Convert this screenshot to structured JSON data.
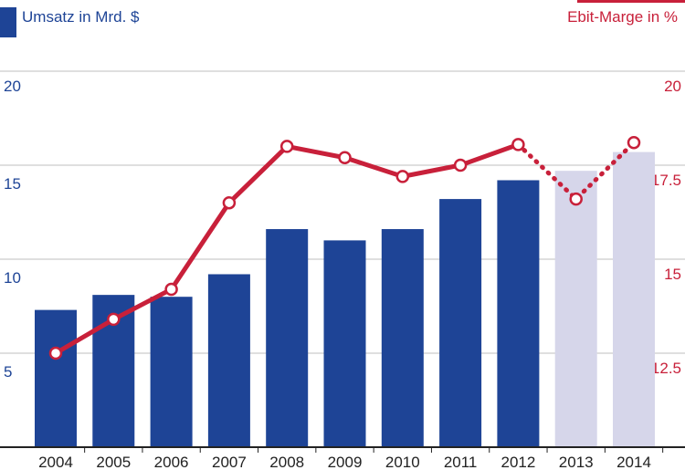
{
  "chart_data": {
    "type": "bar+line",
    "categories": [
      "2004",
      "2005",
      "2006",
      "2007",
      "2008",
      "2009",
      "2010",
      "2011",
      "2012",
      "2013",
      "2014"
    ],
    "series": [
      {
        "name": "Umsatz in Mrd. $",
        "type": "bar",
        "axis": "left",
        "values": [
          7.3,
          8.1,
          8.0,
          9.2,
          11.6,
          11.0,
          11.6,
          13.2,
          14.2,
          14.7,
          15.7
        ],
        "forecast_from": "2013",
        "color": "#1e4496",
        "forecast_color": "#d6d6ea"
      },
      {
        "name": "Ebit-Marge in %",
        "type": "line",
        "axis": "right",
        "values": [
          12.5,
          13.4,
          14.2,
          16.5,
          18.0,
          17.7,
          17.2,
          17.5,
          18.05,
          16.6,
          18.1
        ],
        "forecast_from": "2013",
        "color": "#c8203a"
      }
    ],
    "y_left": {
      "ticks": [
        "5",
        "10",
        "15",
        "20"
      ],
      "range": [
        0,
        20
      ]
    },
    "y_right": {
      "ticks": [
        "12.5",
        "15",
        "17.5",
        "20"
      ],
      "range": [
        10,
        20
      ]
    },
    "grid": true
  },
  "legend": {
    "left_label": "Umsatz in Mrd. $",
    "right_label": "Ebit-Marge in %"
  }
}
